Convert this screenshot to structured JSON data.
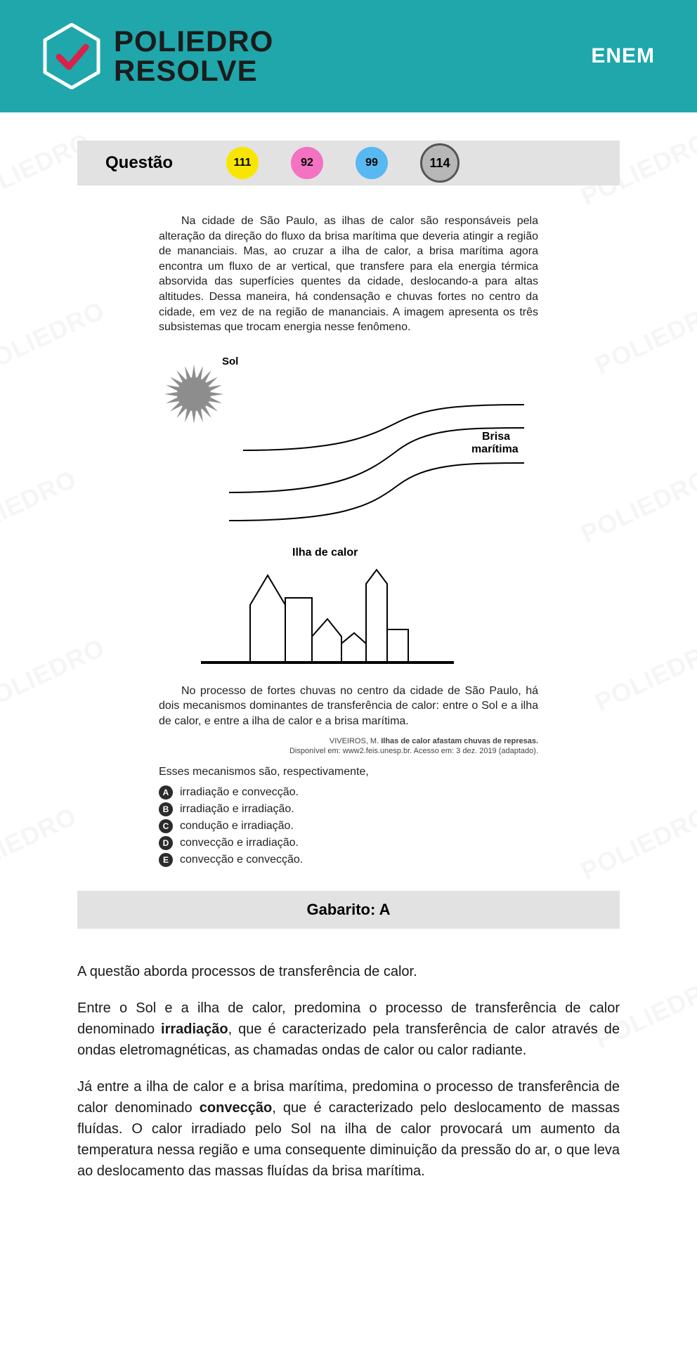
{
  "header": {
    "brand_line1": "POLIEDRO",
    "brand_line2": "RESOLVE",
    "right_label": "ENEM",
    "bg_color": "#1fa7ac",
    "check_color": "#d9214a"
  },
  "watermark_text": "POLIEDRO",
  "question_bar": {
    "label": "Questão",
    "badges": [
      {
        "num": "111",
        "color": "#f9e600",
        "selected": false
      },
      {
        "num": "92",
        "color": "#f372c1",
        "selected": false
      },
      {
        "num": "99",
        "color": "#57b8f2",
        "selected": false
      },
      {
        "num": "114",
        "color": "#b7b7b7",
        "selected": true
      }
    ],
    "bg_color": "#e2e2e2"
  },
  "question": {
    "intro": "Na cidade de São Paulo, as ilhas de calor são responsáveis pela alteração da direção do fluxo da brisa marítima que deveria atingir a região de mananciais. Mas, ao cruzar a ilha de calor, a brisa marítima agora encontra um fluxo de ar vertical, que transfere para ela energia térmica absorvida das superfícies quentes da cidade, deslocando-a para altas altitudes. Dessa maneira, há condensação e chuvas fortes no centro da cidade, em vez de na região de mananciais. A imagem apresenta os três subsistemas que trocam energia nesse fenômeno.",
    "figure": {
      "sun_label": "Sol",
      "breeze_label": "Brisa marítima",
      "island_label": "Ilha de calor",
      "sun_fill": "#8d8d8d",
      "line_color": "#000000"
    },
    "followup": "No processo de fortes chuvas no centro da cidade de São Paulo, há dois mecanismos dominantes de transferência de calor: entre o Sol e a ilha de calor, e entre a ilha de calor e a brisa marítima.",
    "citation_author": "VIVEIROS, M.",
    "citation_title": "Ilhas de calor afastam chuvas de represas.",
    "citation_src": "Disponível em: www2.feis.unesp.br. Acesso em: 3 dez. 2019 (adaptado).",
    "prompt": "Esses mecanismos são, respectivamente,",
    "alternatives": [
      {
        "letter": "A",
        "text": "irradiação e convecção."
      },
      {
        "letter": "B",
        "text": "irradiação e irradiação."
      },
      {
        "letter": "C",
        "text": "condução e irradiação."
      },
      {
        "letter": "D",
        "text": "convecção e irradiação."
      },
      {
        "letter": "E",
        "text": "convecção e convecção."
      }
    ]
  },
  "answer": {
    "label": "Gabarito: A"
  },
  "explanation": {
    "p1": "A questão aborda processos de transferência de calor.",
    "p2_a": "Entre o Sol e a ilha de calor, predomina o processo de transferência de calor denominado ",
    "p2_b": "irradiação",
    "p2_c": ", que é caracterizado pela transferência de calor através de ondas eletromagnéticas, as chamadas ondas de calor ou calor radiante.",
    "p3_a": "Já entre a ilha de calor e a brisa marítima, predomina o processo de transferência de calor denominado ",
    "p3_b": "convecção",
    "p3_c": ", que é caracterizado pelo deslocamento de massas fluídas. O calor irradiado pelo Sol na ilha de calor provocará um aumento da temperatura nessa região e uma consequente diminuição da pressão do ar, o que leva ao deslocamento das massas fluídas da brisa marítima."
  }
}
